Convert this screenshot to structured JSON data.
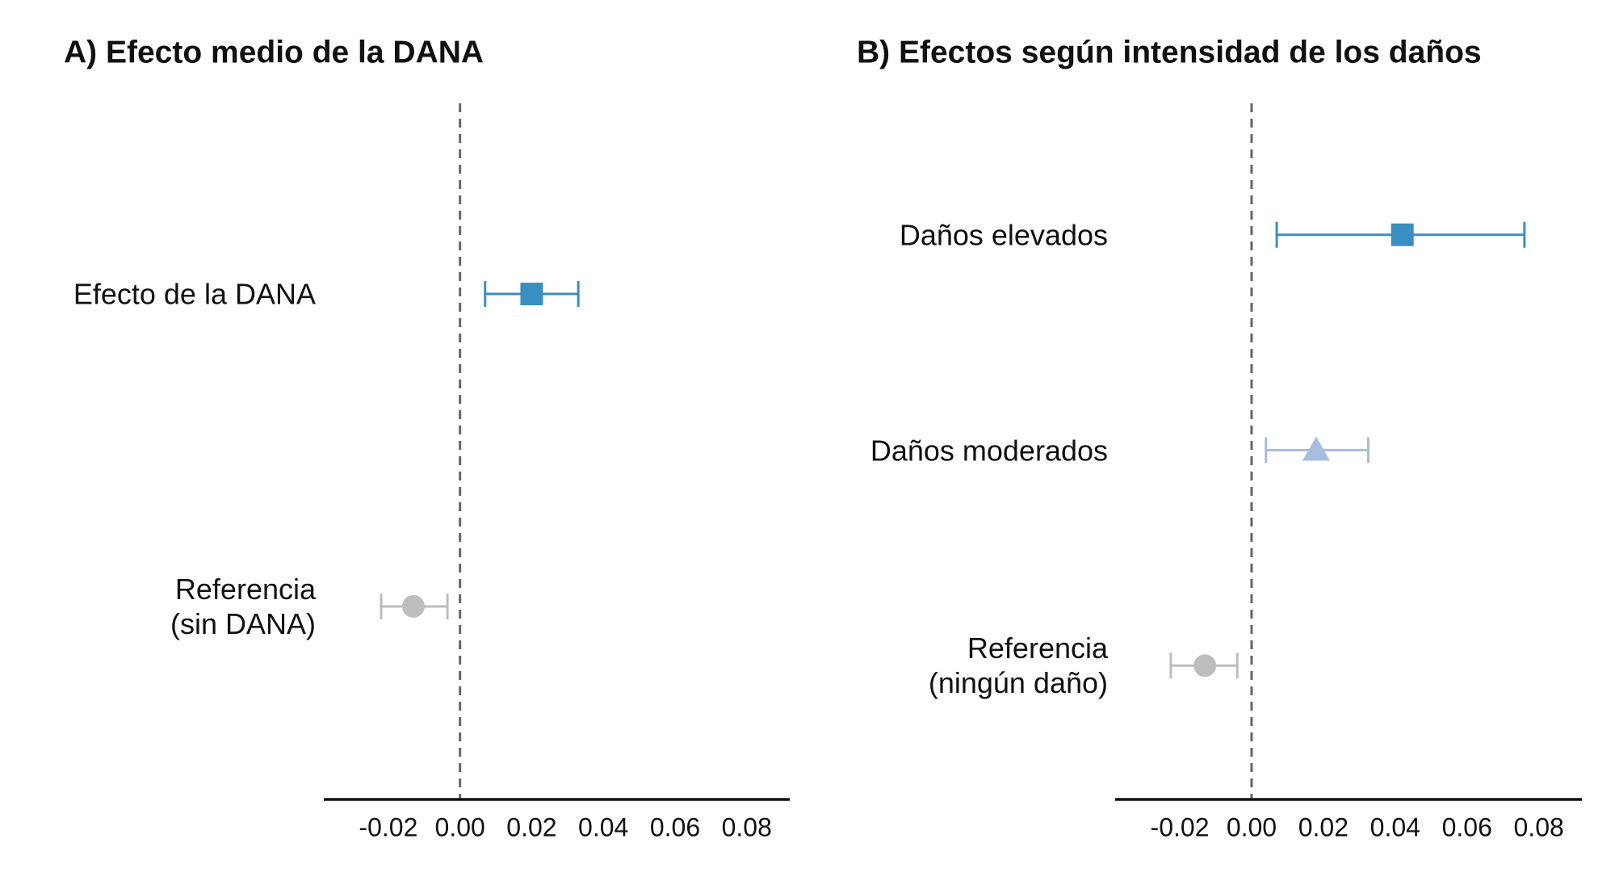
{
  "chart_data": [
    {
      "type": "forest",
      "title": "A) Efecto medio de la DANA",
      "categories": [
        "Efecto de la DANA",
        "Referencia\n(sin DANA)"
      ],
      "values": [
        0.02,
        -0.013
      ],
      "lower": [
        0.007,
        -0.022
      ],
      "upper": [
        0.033,
        -0.0035
      ],
      "colors": [
        "#3a8fc0",
        "#bdbdbd"
      ],
      "markers": [
        "square",
        "circle"
      ],
      "xlim": [
        -0.038,
        0.092
      ],
      "xticks": [
        -0.02,
        {
          "value": 0,
          "label": "0.00"
        },
        0.02,
        0.04,
        0.06,
        0.08
      ],
      "refline": 0
    },
    {
      "type": "forest",
      "title": "B) Efectos según intensidad de los daños",
      "categories": [
        "Daños elevados",
        "Daños moderados",
        "Referencia\n(ningún daño)"
      ],
      "values": [
        0.042,
        0.018,
        -0.013
      ],
      "lower": [
        0.007,
        0.004,
        -0.0225
      ],
      "upper": [
        0.076,
        0.0325,
        -0.004
      ],
      "colors": [
        "#3a8fc0",
        "#a6bddb",
        "#bdbdbd"
      ],
      "markers": [
        "square",
        "triangle",
        "circle"
      ],
      "xlim": [
        -0.038,
        0.092
      ],
      "xticks": [
        -0.02,
        {
          "value": 0,
          "label": "0.00"
        },
        0.02,
        0.04,
        0.06,
        0.08
      ],
      "refline": 0
    }
  ]
}
